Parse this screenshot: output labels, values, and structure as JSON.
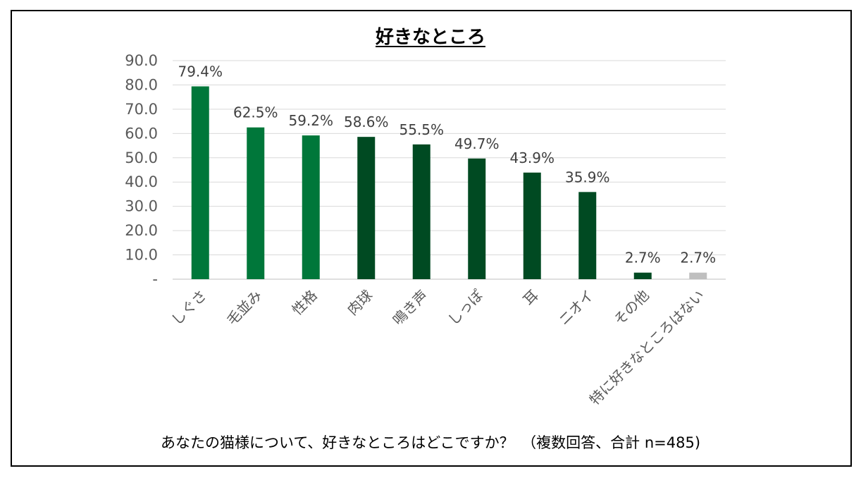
{
  "title": "好きなところ",
  "footnote": "あなたの猫様について、好きなところはどこですか？　（複数回答、合計 n=485)",
  "colors": {
    "light_green": "#00773A",
    "dark_green": "#004A22",
    "gray": "#BFBFBF",
    "grid": "#D9D9D9"
  },
  "chart_data": {
    "type": "bar",
    "title": "好きなところ",
    "categories": [
      "しぐさ",
      "毛並み",
      "性格",
      "肉球",
      "鳴き声",
      "しっぽ",
      "耳",
      "ニオイ",
      "その他",
      "特に好きなところはない"
    ],
    "values": [
      79.4,
      62.5,
      59.2,
      58.6,
      55.5,
      49.7,
      43.9,
      35.9,
      2.7,
      2.7
    ],
    "data_labels": [
      "79.4%",
      "62.5%",
      "59.2%",
      "58.6%",
      "55.5%",
      "49.7%",
      "43.9%",
      "35.9%",
      "2.7%",
      "2.7%"
    ],
    "bar_colors": [
      "light_green",
      "light_green",
      "light_green",
      "dark_green",
      "dark_green",
      "dark_green",
      "dark_green",
      "dark_green",
      "dark_green",
      "gray"
    ],
    "y_ticks": [
      "-",
      "10.0",
      "20.0",
      "30.0",
      "40.0",
      "50.0",
      "60.0",
      "70.0",
      "80.0",
      "90.0"
    ],
    "ylim": [
      0,
      90
    ],
    "grid": true,
    "legend": "none",
    "x_label_rotation": "-45deg"
  }
}
